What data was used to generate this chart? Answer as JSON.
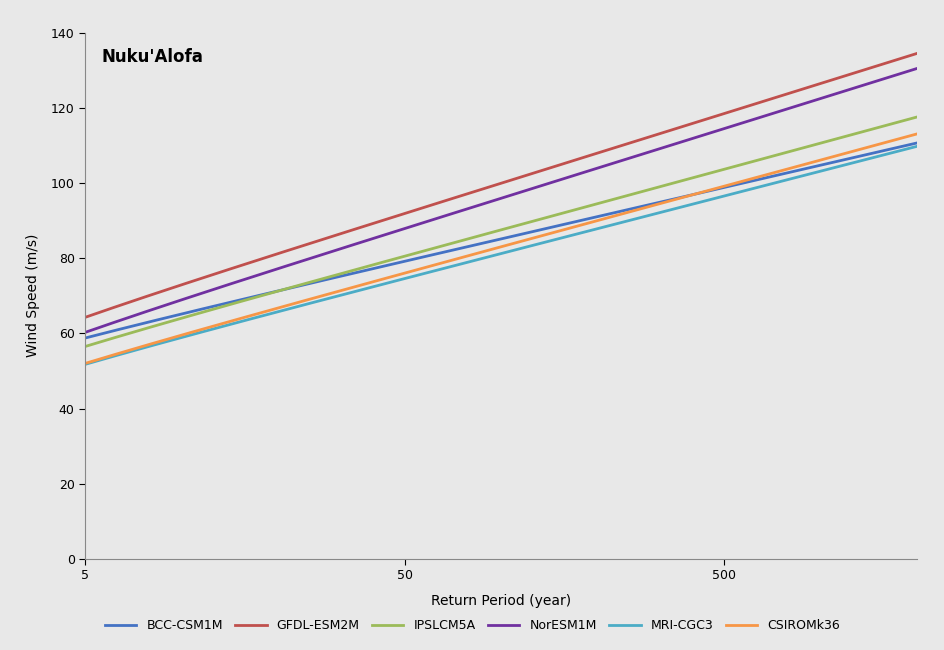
{
  "title": "Nuku'Alofa",
  "xlabel": "Return Period (year)",
  "ylabel": "Wind Speed (m/s)",
  "background_color": "#e8e8e8",
  "ylim": [
    0,
    140
  ],
  "yticks": [
    0,
    20,
    40,
    60,
    80,
    100,
    120,
    140
  ],
  "xmin": 5,
  "xmax": 2000,
  "xticks": [
    5,
    50,
    500
  ],
  "models": [
    {
      "name": "BCC-CSM1M",
      "color": "#4472c4",
      "mu": 46.0,
      "sigma": 8.5
    },
    {
      "name": "GFDL-ESM2M",
      "color": "#c0504d",
      "mu": 47.0,
      "sigma": 11.5
    },
    {
      "name": "IPSLCM5A",
      "color": "#9bbb59",
      "mu": 41.5,
      "sigma": 10.0
    },
    {
      "name": "NorESM1M",
      "color": "#7030a0",
      "mu": 43.0,
      "sigma": 11.5
    },
    {
      "name": "MRI-CGC3",
      "color": "#4bacc6",
      "mu": 37.5,
      "sigma": 9.5
    },
    {
      "name": "CSIROMk36",
      "color": "#f79646",
      "mu": 37.0,
      "sigma": 10.0
    }
  ],
  "legend_fontsize": 9,
  "title_fontsize": 12,
  "axis_fontsize": 10
}
